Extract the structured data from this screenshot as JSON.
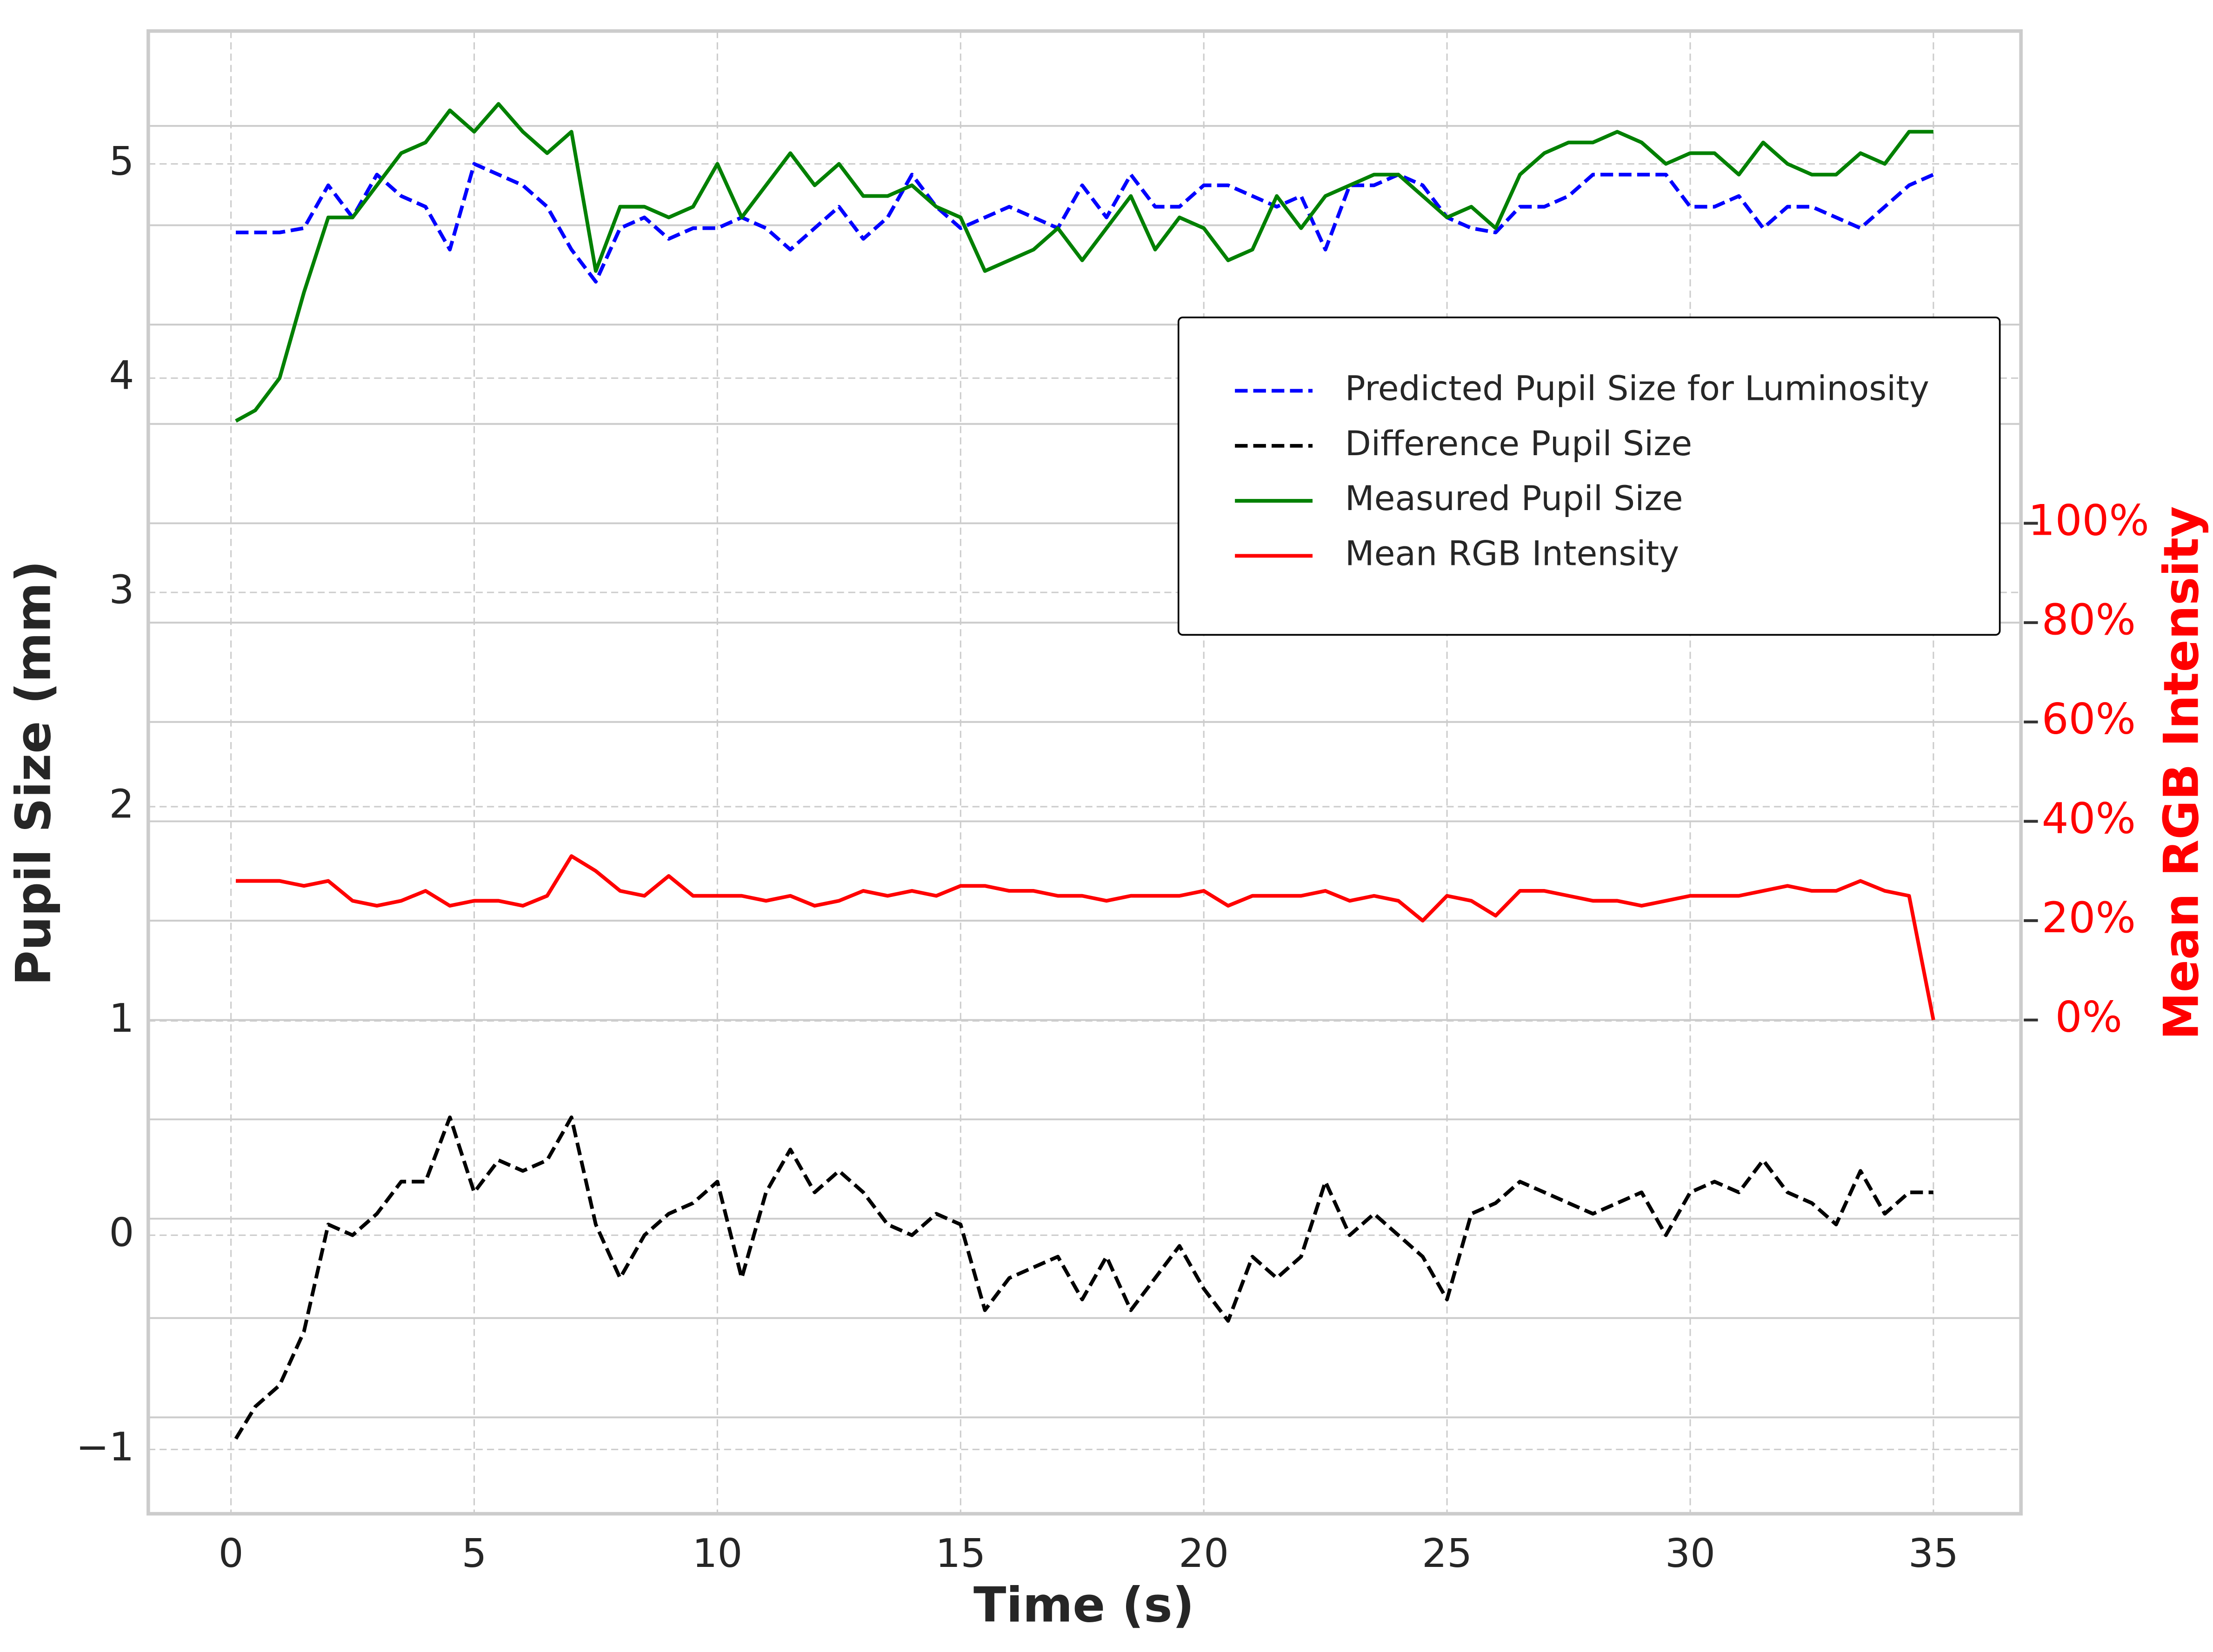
{
  "chart_data": {
    "type": "line",
    "xlabel": "Time (s)",
    "ylabel": "Pupil Size (mm)",
    "y2label": "Mean RGB Intensity",
    "x": [
      0.1,
      0.5,
      1,
      1.5,
      2,
      2.5,
      3,
      3.5,
      4,
      4.5,
      5,
      5.5,
      6,
      6.5,
      7,
      7.5,
      8,
      8.5,
      9,
      9.5,
      10,
      10.5,
      11,
      11.5,
      12,
      12.5,
      13,
      13.5,
      14,
      14.5,
      15,
      15.5,
      16,
      16.5,
      17,
      17.5,
      18,
      18.5,
      19,
      19.5,
      20,
      20.5,
      21,
      21.5,
      22,
      22.5,
      23,
      23.5,
      24,
      24.5,
      25,
      25.5,
      26,
      26.5,
      27,
      27.5,
      28,
      28.5,
      29,
      29.5,
      30,
      30.5,
      31,
      31.5,
      32,
      32.5,
      33,
      33.5,
      34,
      34.5,
      35
    ],
    "series": [
      {
        "name": "Predicted Pupil Size for Luminosity",
        "color": "#0000ff",
        "linestyle": "dashed",
        "values": [
          4.68,
          4.68,
          4.68,
          4.7,
          4.9,
          4.75,
          4.95,
          4.85,
          4.8,
          4.6,
          5.0,
          4.95,
          4.9,
          4.8,
          4.6,
          4.45,
          4.7,
          4.75,
          4.65,
          4.7,
          4.7,
          4.75,
          4.7,
          4.6,
          4.7,
          4.8,
          4.65,
          4.75,
          4.95,
          4.8,
          4.7,
          4.75,
          4.8,
          4.75,
          4.7,
          4.9,
          4.75,
          4.95,
          4.8,
          4.8,
          4.9,
          4.9,
          4.85,
          4.8,
          4.85,
          4.6,
          4.9,
          4.9,
          4.95,
          4.9,
          4.75,
          4.7,
          4.68,
          4.8,
          4.8,
          4.85,
          4.95,
          4.95,
          4.95,
          4.95,
          4.8,
          4.8,
          4.85,
          4.7,
          4.8,
          4.8,
          4.75,
          4.7,
          4.8,
          4.9,
          4.95
        ]
      },
      {
        "name": "Difference Pupil Size",
        "color": "#000000",
        "linestyle": "dashed",
        "values": [
          -0.95,
          -0.8,
          -0.7,
          -0.45,
          0.05,
          0.0,
          0.1,
          0.25,
          0.25,
          0.55,
          0.2,
          0.35,
          0.3,
          0.35,
          0.55,
          0.05,
          -0.2,
          0.0,
          0.1,
          0.15,
          0.25,
          -0.2,
          0.2,
          0.4,
          0.2,
          0.3,
          0.2,
          0.05,
          0.0,
          0.1,
          0.05,
          -0.35,
          -0.2,
          -0.15,
          -0.1,
          -0.3,
          -0.1,
          -0.35,
          -0.2,
          -0.05,
          -0.25,
          -0.4,
          -0.1,
          -0.2,
          -0.1,
          0.25,
          0.0,
          0.1,
          0.0,
          -0.1,
          -0.3,
          0.1,
          0.15,
          0.25,
          0.2,
          0.15,
          0.1,
          0.15,
          0.2,
          0.0,
          0.2,
          0.25,
          0.2,
          0.35,
          0.2,
          0.15,
          0.05,
          0.3,
          0.1,
          0.2,
          0.2
        ]
      },
      {
        "name": "Measured Pupil Size",
        "color": "#008000",
        "linestyle": "solid",
        "values": [
          3.8,
          3.85,
          4.0,
          4.4,
          4.75,
          4.75,
          4.9,
          5.05,
          5.1,
          5.25,
          5.15,
          5.28,
          5.15,
          5.05,
          5.15,
          4.5,
          4.8,
          4.8,
          4.75,
          4.8,
          5.0,
          4.75,
          4.9,
          5.05,
          4.9,
          5.0,
          4.85,
          4.85,
          4.9,
          4.8,
          4.75,
          4.5,
          4.55,
          4.6,
          4.7,
          4.55,
          4.7,
          4.85,
          4.6,
          4.75,
          4.7,
          4.55,
          4.6,
          4.85,
          4.7,
          4.85,
          4.9,
          4.95,
          4.95,
          4.85,
          4.75,
          4.8,
          4.7,
          4.95,
          5.05,
          5.1,
          5.1,
          5.15,
          5.1,
          5.0,
          5.05,
          5.05,
          4.95,
          5.1,
          5.0,
          4.95,
          4.95,
          5.05,
          5.0,
          5.15,
          5.15
        ]
      },
      {
        "name": "Mean RGB Intensity",
        "color": "#ff0000",
        "linestyle": "solid",
        "axis": "y2",
        "values": [
          28,
          28,
          28,
          27,
          28,
          24,
          23,
          24,
          26,
          23,
          24,
          24,
          23,
          25,
          33,
          30,
          26,
          25,
          29,
          25,
          25,
          25,
          24,
          25,
          23,
          24,
          26,
          25,
          26,
          25,
          27,
          27,
          26,
          26,
          25,
          25,
          24,
          25,
          25,
          25,
          26,
          23,
          25,
          25,
          25,
          26,
          24,
          25,
          24,
          20,
          25,
          24,
          21,
          26,
          26,
          25,
          24,
          24,
          23,
          24,
          25,
          25,
          25,
          26,
          27,
          26,
          26,
          28,
          26,
          25,
          0
        ]
      }
    ],
    "xlim": [
      -1.7,
      36.8
    ],
    "xticks": [
      0,
      5,
      10,
      15,
      20,
      25,
      30,
      35
    ],
    "ylim": [
      -1.3,
      5.62
    ],
    "yticks": [
      {
        "value": -1,
        "label": "−1"
      },
      0,
      1,
      2,
      3,
      4,
      5
    ],
    "y2lim": [
      -99.4,
      199.1
    ],
    "y2ticks": [
      {
        "value": 0,
        "label": "0%"
      },
      {
        "value": 20,
        "label": "20%"
      },
      {
        "value": 40,
        "label": "40%"
      },
      {
        "value": 60,
        "label": "60%"
      },
      {
        "value": 80,
        "label": "80%"
      },
      {
        "value": 100,
        "label": "100%"
      }
    ],
    "y2gridlines": [
      -80,
      -60,
      -40,
      -20,
      0,
      20,
      40,
      60,
      80,
      100,
      120,
      140,
      160,
      180
    ],
    "grid": true,
    "legend": "upper right"
  }
}
